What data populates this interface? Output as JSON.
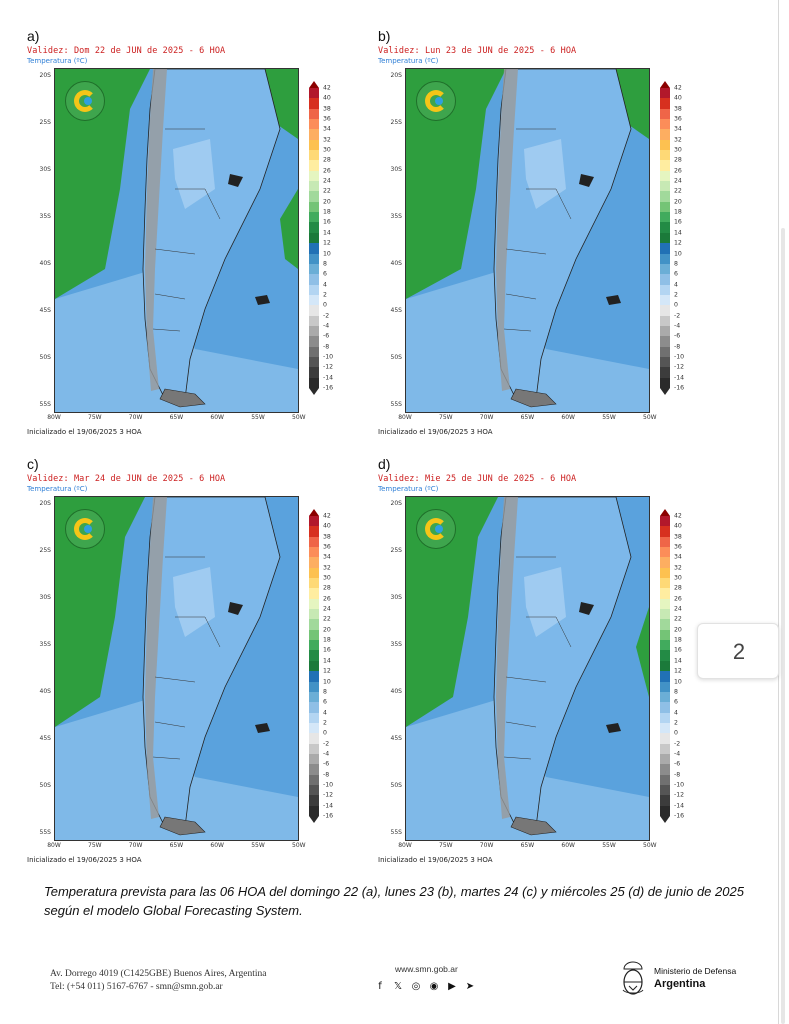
{
  "panels": [
    {
      "letter": "a)",
      "validez": "Validez: Dom 22 de JUN de 2025 - 6 HOA",
      "variable": "Temperatura (ºC)",
      "init": "Inicializado el 19/06/2025 3 HOA"
    },
    {
      "letter": "b)",
      "validez": "Validez: Lun 23 de JUN de 2025 - 6 HOA",
      "variable": "Temperatura (ºC)",
      "init": "Inicializado el 19/06/2025 3 HOA"
    },
    {
      "letter": "c)",
      "validez": "Validez: Mar 24 de JUN de 2025 - 6 HOA",
      "variable": "Temperatura (ºC)",
      "init": "Inicializado el 19/06/2025 3 HOA"
    },
    {
      "letter": "d)",
      "validez": "Validez: Mie 25 de JUN de 2025 - 6 HOA",
      "variable": "Temperatura (ºC)",
      "init": "Inicializado el 19/06/2025 3 HOA"
    }
  ],
  "latitudes": [
    "20S",
    "25S",
    "30S",
    "35S",
    "40S",
    "45S",
    "50S",
    "55S"
  ],
  "longitudes": [
    "80W",
    "75W",
    "70W",
    "65W",
    "60W",
    "55W",
    "50W"
  ],
  "colorbar": {
    "labels": [
      "42",
      "40",
      "38",
      "36",
      "34",
      "32",
      "30",
      "28",
      "26",
      "24",
      "22",
      "20",
      "18",
      "16",
      "14",
      "12",
      "10",
      "8",
      "6",
      "4",
      "2",
      "0",
      "-2",
      "-4",
      "-6",
      "-8",
      "-10",
      "-12",
      "-14",
      "-16"
    ],
    "colors": [
      "#b2182b",
      "#d7301f",
      "#ef6548",
      "#fc8d59",
      "#fdae61",
      "#fdc150",
      "#fed976",
      "#ffeda0",
      "#e5f5c0",
      "#c7e9b4",
      "#a1d99b",
      "#74c476",
      "#41ab5d",
      "#238b45",
      "#1b7a3a",
      "#2171b5",
      "#4292c6",
      "#6baed6",
      "#8fbfe6",
      "#b3d5f2",
      "#d4e7f8",
      "#e6e6e6",
      "#c8c8c8",
      "#aaaaaa",
      "#8c8c8c",
      "#707070",
      "#555555",
      "#3c3c3c",
      "#2a2a2a"
    ]
  },
  "colors": {
    "ocean_light": "#8ec3ec",
    "ocean_mid": "#5aa2dd",
    "ocean_dark": "#3f86cc",
    "warm_green": "#2e9e3e",
    "land_blue": "#7db8ea",
    "cold_gray": "#9a9a9a"
  },
  "caption": "Temperatura prevista para las 06 HOA del domingo 22 (a), lunes 23 (b), martes 24 (c) y miércoles 25 (d) de junio de 2025 según el modelo Global Forecasting System.",
  "footer": {
    "address_line1": "Av. Dorrego 4019 (C1425GBE) Buenos Aires, Argentina",
    "address_line2": "Tel: (+54 011) 5167-6767 - smn@smn.gob.ar",
    "website": "www.smn.gob.ar",
    "social_icons": [
      "facebook-icon",
      "twitter-icon",
      "instagram-icon",
      "podcast-icon",
      "youtube-icon",
      "telegram-icon"
    ],
    "ministry_line1": "Ministerio de Defensa",
    "ministry_line2": "Argentina"
  },
  "page_number": "2"
}
